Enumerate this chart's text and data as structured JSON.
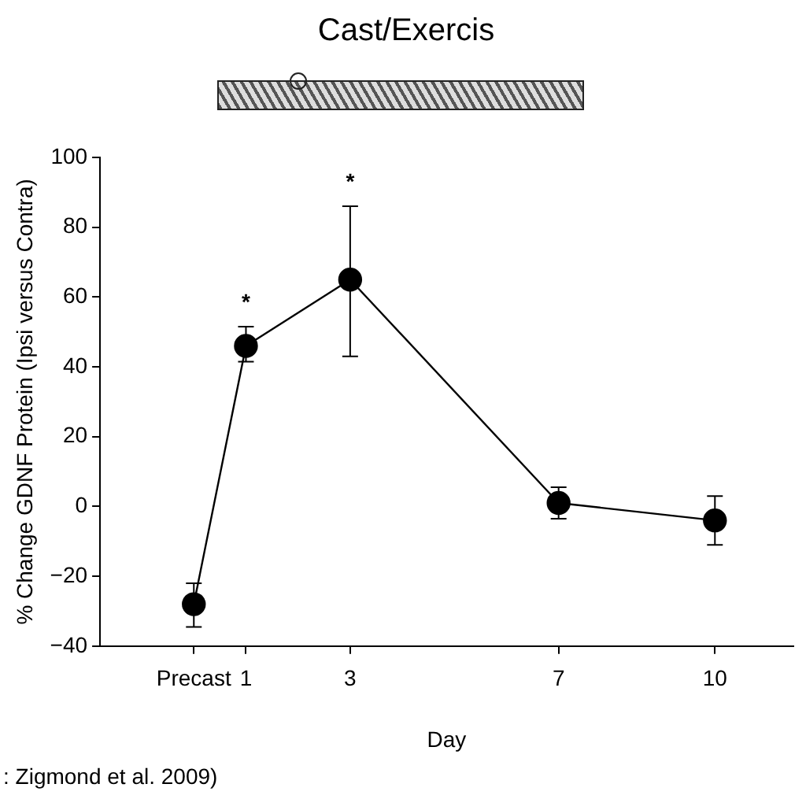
{
  "chart_data": {
    "type": "line",
    "title": "Cast/Exercis",
    "xlabel": "Day",
    "ylabel": "% Change GDNF Protein (Ipsi versus Contra)",
    "x": [
      0,
      1,
      3,
      7,
      10
    ],
    "series": [
      {
        "color": "#000000",
        "values": [
          -28,
          46,
          65,
          1,
          -4
        ],
        "errors": [
          [
            -34.5,
            -22
          ],
          [
            41.5,
            51.5
          ],
          [
            43,
            86
          ],
          [
            -3.5,
            5.5
          ],
          [
            -11,
            3
          ]
        ]
      }
    ],
    "xlim": [
      -1.8,
      11.5
    ],
    "xticks": [
      {
        "value": 0,
        "label": "Precast"
      },
      1,
      3,
      7,
      10
    ],
    "ylim": [
      -40,
      100
    ],
    "yticks": [
      -40,
      -20,
      0,
      20,
      40,
      60,
      80,
      100
    ],
    "grid": false,
    "legend": false,
    "marker": "circle",
    "line_style": "solid",
    "annotations": [
      {
        "text": "*",
        "x": 1,
        "y": 51.5
      },
      {
        "text": "*",
        "x": 3,
        "y": 86
      },
      ": Zigmond et al. 2009)"
    ]
  }
}
